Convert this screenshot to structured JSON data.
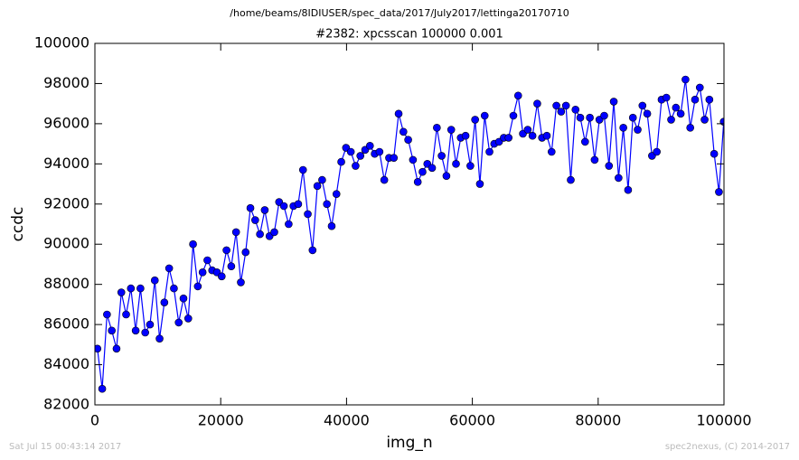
{
  "chart_data": {
    "type": "line",
    "suptitle": "/home/beams/8IDIUSER/spec_data/2017/July2017/lettinga20170710",
    "title": "#2382: xpcsscan 100000 0.001",
    "xlabel": "img_n",
    "ylabel": "ccdc",
    "footer_left": "Sat Jul 15 00:43:14 2017",
    "footer_right": "spec2nexus, (C) 2014-2017",
    "color": "#0000ff",
    "grid": false,
    "xlim": [
      0,
      100000
    ],
    "xticks": [
      0,
      20000,
      40000,
      60000,
      80000,
      100000
    ],
    "ylim": [
      82000,
      100000
    ],
    "yticks": [
      82000,
      84000,
      86000,
      88000,
      90000,
      92000,
      94000,
      96000,
      98000,
      100000
    ],
    "x": [
      400,
      1160,
      1920,
      2680,
      3440,
      4200,
      4960,
      5720,
      6480,
      7240,
      8000,
      8760,
      9520,
      10280,
      11040,
      11800,
      12560,
      13320,
      14080,
      14840,
      15600,
      16360,
      17120,
      17880,
      18640,
      19400,
      20160,
      20920,
      21680,
      22440,
      23200,
      23960,
      24720,
      25480,
      26240,
      27000,
      27760,
      28520,
      29280,
      30040,
      30800,
      31560,
      32320,
      33080,
      33840,
      34600,
      35360,
      36120,
      36880,
      37640,
      38400,
      39160,
      39920,
      40680,
      41440,
      42200,
      42960,
      43720,
      44480,
      45240,
      46000,
      46760,
      47520,
      48280,
      49040,
      49800,
      50560,
      51320,
      52080,
      52840,
      53600,
      54360,
      55120,
      55880,
      56640,
      57400,
      58160,
      58920,
      59680,
      60440,
      61200,
      61960,
      62720,
      63480,
      64240,
      65000,
      65760,
      66520,
      67280,
      68040,
      68800,
      69560,
      70320,
      71080,
      71840,
      72600,
      73360,
      74120,
      74880,
      75640,
      76400,
      77160,
      77920,
      78680,
      79440,
      80200,
      80960,
      81720,
      82480,
      83240,
      84000,
      84760,
      85520,
      86280,
      87040,
      87800,
      88560,
      89320,
      90080,
      90840,
      91600,
      92360,
      93120,
      93880,
      94640,
      95400,
      96160,
      96920,
      97680,
      98440,
      99200,
      99960
    ],
    "values": [
      84800,
      82800,
      86500,
      85700,
      84800,
      87600,
      86500,
      87800,
      85700,
      87800,
      85600,
      86000,
      88200,
      85300,
      87100,
      88800,
      87800,
      86100,
      87300,
      86300,
      90000,
      87900,
      88600,
      89200,
      88700,
      88600,
      88400,
      89700,
      88900,
      90600,
      88100,
      89600,
      91800,
      91200,
      90500,
      91700,
      90400,
      90600,
      92100,
      91900,
      91000,
      91900,
      92000,
      93700,
      91500,
      89700,
      92900,
      93200,
      92000,
      90900,
      92500,
      94100,
      94800,
      94600,
      93900,
      94400,
      94700,
      94900,
      94500,
      94600,
      93200,
      94300,
      94300,
      96500,
      95600,
      95200,
      94200,
      93100,
      93600,
      94000,
      93800,
      95800,
      94400,
      93400,
      95700,
      94000,
      95300,
      95400,
      93900,
      96200,
      93000,
      96400,
      94600,
      95000,
      95100,
      95300,
      95300,
      96400,
      97400,
      95500,
      95700,
      95400,
      97000,
      95300,
      95400,
      94600,
      96900,
      96600,
      96900,
      93200,
      96700,
      96300,
      95100,
      96300,
      94200,
      96200,
      96400,
      93900,
      97100,
      93300,
      95800,
      92700,
      96300,
      95700,
      96900,
      96500,
      94400,
      94600,
      97200,
      97300,
      96200,
      96800,
      96500,
      98200,
      95800,
      97200,
      97800,
      96200,
      97200,
      94500,
      92600,
      96100
    ]
  }
}
